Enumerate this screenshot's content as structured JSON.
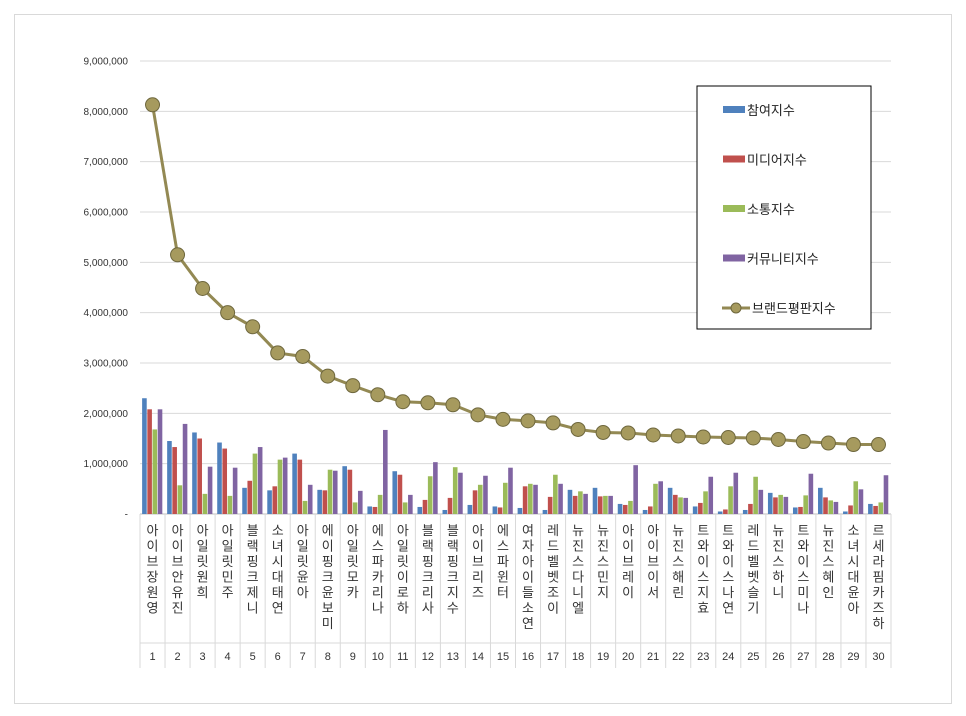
{
  "chart_data": {
    "type": "bar",
    "title": "",
    "xlabel": "",
    "ylabel": "",
    "ylim": [
      0,
      9000000
    ],
    "yticks": [
      "-",
      "1,000,000",
      "2,000,000",
      "3,000,000",
      "4,000,000",
      "5,000,000",
      "6,000,000",
      "7,000,000",
      "8,000,000",
      "9,000,000"
    ],
    "grid": true,
    "legend_position": "top-right",
    "categories": [
      "아이브 장원영",
      "아이브 안유진",
      "아일릿 원희",
      "아일릿 민주",
      "블랙핑크 제니",
      "소녀시대 태연",
      "아일릿 윤아",
      "에이핑크 윤보미",
      "아일릿 모카",
      "에스파 카리나",
      "아일릿 이로하",
      "블랙핑크 리사",
      "블랙핑크 지수",
      "아이브 리즈",
      "에스파 윈터",
      "여자아이들 소연",
      "레드벨벳 조이",
      "뉴진스 다니엘",
      "뉴진스 민지",
      "아이브 레이",
      "아이브 이서",
      "뉴진스 해린",
      "트와이스 지효",
      "트와이스 나연",
      "레드벨벳 슬기",
      "뉴진스 하니",
      "트와이스 미나",
      "뉴진스 혜인",
      "소녀시대 윤아",
      "르세라핌 카즈하"
    ],
    "ranks": [
      "1",
      "2",
      "3",
      "4",
      "5",
      "6",
      "7",
      "8",
      "9",
      "10",
      "11",
      "12",
      "13",
      "14",
      "15",
      "16",
      "17",
      "18",
      "19",
      "20",
      "21",
      "22",
      "23",
      "24",
      "25",
      "26",
      "27",
      "28",
      "29",
      "30"
    ],
    "series": [
      {
        "name": "참여지수",
        "type": "bar",
        "color": "#4f81bd",
        "values": [
          2300000,
          1450000,
          1620000,
          1420000,
          520000,
          470000,
          1200000,
          480000,
          950000,
          150000,
          850000,
          140000,
          80000,
          180000,
          150000,
          120000,
          80000,
          480000,
          520000,
          200000,
          80000,
          520000,
          150000,
          50000,
          80000,
          420000,
          130000,
          520000,
          50000,
          200000
        ]
      },
      {
        "name": "미디어지수",
        "type": "bar",
        "color": "#c0504d",
        "values": [
          2080000,
          1330000,
          1500000,
          1300000,
          660000,
          550000,
          1080000,
          470000,
          880000,
          140000,
          780000,
          280000,
          320000,
          470000,
          130000,
          550000,
          340000,
          360000,
          350000,
          180000,
          150000,
          380000,
          220000,
          90000,
          200000,
          330000,
          140000,
          330000,
          170000,
          160000
        ]
      },
      {
        "name": "소통지수",
        "type": "bar",
        "color": "#9bbb59",
        "values": [
          1680000,
          570000,
          400000,
          360000,
          1200000,
          1080000,
          260000,
          880000,
          230000,
          380000,
          230000,
          750000,
          930000,
          580000,
          620000,
          600000,
          780000,
          450000,
          360000,
          260000,
          600000,
          330000,
          450000,
          550000,
          740000,
          380000,
          370000,
          270000,
          650000,
          230000
        ]
      },
      {
        "name": "커뮤니티지수",
        "type": "bar",
        "color": "#8064a2",
        "values": [
          2080000,
          1790000,
          940000,
          920000,
          1330000,
          1120000,
          580000,
          860000,
          460000,
          1670000,
          380000,
          1030000,
          820000,
          760000,
          920000,
          580000,
          600000,
          400000,
          360000,
          970000,
          650000,
          320000,
          740000,
          820000,
          480000,
          340000,
          800000,
          240000,
          490000,
          770000
        ]
      },
      {
        "name": "브랜드평판지수",
        "type": "line",
        "color": "#938953",
        "values": [
          8130000,
          5150000,
          4480000,
          4000000,
          3720000,
          3200000,
          3130000,
          2740000,
          2550000,
          2370000,
          2230000,
          2210000,
          2170000,
          1970000,
          1880000,
          1850000,
          1810000,
          1680000,
          1620000,
          1610000,
          1570000,
          1550000,
          1530000,
          1520000,
          1510000,
          1480000,
          1440000,
          1410000,
          1380000,
          1380000
        ]
      }
    ]
  }
}
